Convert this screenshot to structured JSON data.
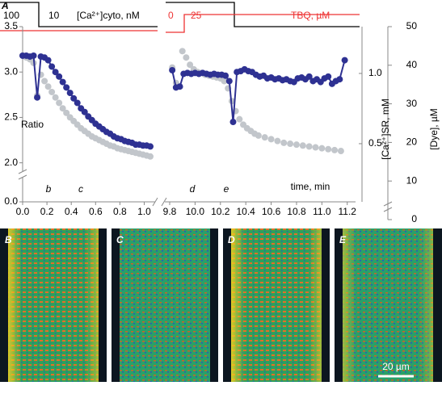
{
  "panel_label": "A",
  "chart_data": {
    "type": "scatter",
    "stimulus": {
      "cyto_before": "100",
      "cyto_after": "10",
      "cyto_label": "[Ca²⁺]cyto, nM",
      "tbq_before": "0",
      "tbq_after": "25",
      "tbq_label": "TBQ, µM"
    },
    "segments": [
      {
        "xlim": [
          0,
          1.05
        ],
        "xticks": [
          {
            "value": 0,
            "label": "0.0"
          },
          0.2,
          0.4,
          0.6,
          0.8,
          {
            "value": 1,
            "label": "1.0"
          }
        ]
      },
      {
        "xlim": [
          9.8,
          11.25
        ],
        "xticks": [
          9.8,
          {
            "value": 10,
            "label": "10.0"
          },
          10.2,
          10.4,
          10.6,
          10.8,
          {
            "value": 11,
            "label": "11.0"
          },
          11.2
        ]
      }
    ],
    "x_label": "time, min",
    "ylim": [
      1.57,
      3.5
    ],
    "yticks": [
      {
        "value": 0,
        "label": "0.0"
      },
      {
        "value": 2,
        "label": "2.0"
      },
      2.5,
      {
        "value": 3,
        "label": "3.0"
      },
      3.5
    ],
    "y2_label": "[Dye], µM",
    "y2lim": [
      0,
      50
    ],
    "y2ticks": [
      0,
      10,
      20,
      30,
      40,
      50
    ],
    "y3_label": "[Ca²⁺]SR, mM",
    "y3lim": [
      0.086,
      1.333
    ],
    "y3ticks": [
      {
        "value": 0.5,
        "label": "0.5"
      },
      {
        "value": 1,
        "label": "1.0"
      }
    ],
    "annotations": [
      "Ratio",
      "b",
      "c",
      "d",
      "e"
    ],
    "series": [
      {
        "color": "#c2c6cb",
        "line": false,
        "x": [
          0.0,
          0.03,
          0.06,
          0.09,
          0.12,
          0.15,
          0.18,
          0.21,
          0.24,
          0.27,
          0.3,
          0.33,
          0.36,
          0.39,
          0.42,
          0.45,
          0.48,
          0.51,
          0.54,
          0.57,
          0.6,
          0.63,
          0.66,
          0.69,
          0.72,
          0.75,
          0.78,
          0.81,
          0.84,
          0.87,
          0.9,
          0.93,
          0.96,
          0.99,
          1.02,
          1.05,
          null,
          9.82,
          9.85,
          9.9,
          9.93,
          9.96,
          9.99,
          10.02,
          10.05,
          10.08,
          10.11,
          10.14,
          10.17,
          10.2,
          10.23,
          10.26,
          10.29,
          10.32,
          10.35,
          10.38,
          10.41,
          10.44,
          10.47,
          10.5,
          10.55,
          10.6,
          10.65,
          10.7,
          10.75,
          10.8,
          10.85,
          10.9,
          10.95,
          11.0,
          11.05,
          11.1,
          11.15
        ],
        "values": [
          3.18,
          3.16,
          3.14,
          3.1,
          2.74,
          2.97,
          2.9,
          2.84,
          2.78,
          2.72,
          2.66,
          2.6,
          2.55,
          2.5,
          2.46,
          2.42,
          2.38,
          2.35,
          2.32,
          2.29,
          2.27,
          2.25,
          2.23,
          2.21,
          2.19,
          2.18,
          2.16,
          2.15,
          2.14,
          2.13,
          2.12,
          2.11,
          2.1,
          2.09,
          2.08,
          2.07,
          null,
          3.05,
          2.88,
          3.23,
          3.16,
          3.08,
          3.03,
          3.0,
          2.99,
          2.97,
          2.96,
          2.95,
          2.94,
          2.93,
          2.9,
          2.82,
          2.68,
          2.57,
          2.48,
          2.42,
          2.38,
          2.35,
          2.32,
          2.3,
          2.28,
          2.26,
          2.24,
          2.22,
          2.21,
          2.2,
          2.19,
          2.18,
          2.17,
          2.16,
          2.15,
          2.14,
          2.13
        ]
      },
      {
        "color": "#2e3192",
        "line": true,
        "x": [
          0.0,
          0.03,
          0.06,
          0.09,
          0.12,
          0.15,
          0.18,
          0.21,
          0.24,
          0.27,
          0.3,
          0.33,
          0.36,
          0.39,
          0.42,
          0.45,
          0.48,
          0.51,
          0.54,
          0.57,
          0.6,
          0.63,
          0.66,
          0.69,
          0.72,
          0.75,
          0.78,
          0.81,
          0.84,
          0.87,
          0.9,
          0.93,
          0.96,
          0.99,
          1.02,
          1.05,
          null,
          9.82,
          9.85,
          9.88,
          9.91,
          9.94,
          9.97,
          10.0,
          10.03,
          10.06,
          10.09,
          10.12,
          10.15,
          10.18,
          10.21,
          10.24,
          10.27,
          10.3,
          10.33,
          10.36,
          10.39,
          10.42,
          10.45,
          10.48,
          10.51,
          10.54,
          10.57,
          10.6,
          10.63,
          10.66,
          10.69,
          10.72,
          10.75,
          10.78,
          10.81,
          10.84,
          10.87,
          10.9,
          10.93,
          10.96,
          10.99,
          11.02,
          11.05,
          11.08,
          11.11,
          11.14,
          11.18
        ],
        "values": [
          3.18,
          3.18,
          3.17,
          3.18,
          2.72,
          3.17,
          3.16,
          3.13,
          3.06,
          3.0,
          2.95,
          2.89,
          2.83,
          2.77,
          2.71,
          2.66,
          2.6,
          2.56,
          2.51,
          2.47,
          2.43,
          2.4,
          2.37,
          2.34,
          2.32,
          2.29,
          2.27,
          2.26,
          2.24,
          2.23,
          2.22,
          2.2,
          2.2,
          2.19,
          2.19,
          2.18,
          null,
          3.02,
          2.83,
          2.84,
          2.98,
          2.99,
          2.98,
          2.99,
          2.98,
          2.99,
          2.98,
          2.97,
          2.98,
          2.97,
          2.97,
          2.96,
          2.9,
          2.45,
          3.0,
          3.01,
          3.03,
          3.01,
          3.0,
          2.97,
          2.95,
          2.96,
          2.93,
          2.94,
          2.92,
          2.93,
          2.91,
          2.92,
          2.9,
          2.89,
          2.93,
          2.94,
          2.92,
          2.95,
          2.9,
          2.92,
          2.89,
          2.93,
          2.95,
          2.87,
          2.9,
          2.92,
          3.13
        ]
      }
    ]
  },
  "images": [
    {
      "label": "B"
    },
    {
      "label": "C"
    },
    {
      "label": "D"
    },
    {
      "label": "E"
    }
  ],
  "scale_bar": "20 µm"
}
